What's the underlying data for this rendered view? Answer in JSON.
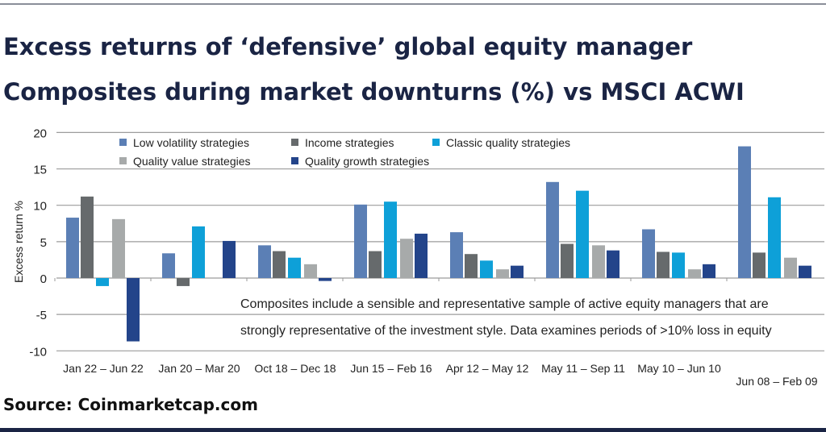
{
  "title_lines": [
    "Excess returns of ‘defensive’ global equity manager",
    "Composites during market downturns (%) vs MSCI ACWI"
  ],
  "source": "Source: Coinmarketcap.com",
  "chart_data": {
    "type": "bar",
    "title": "Excess returns of ‘defensive’ global equity manager Composites during market downturns (%) vs MSCI ACWI",
    "xlabel": "",
    "ylabel": "Excess return %",
    "ylim": [
      -10,
      20
    ],
    "yticks": [
      20,
      15,
      10,
      5,
      0,
      -5,
      -10
    ],
    "grid": true,
    "legend_position": "top",
    "categories": [
      "Jan 22 – Jun 22",
      "Jan 20 – Mar 20",
      "Oct 18 – Dec 18",
      "Jun 15 – Feb 16",
      "Apr 12 – May 12",
      "May 11 – Sep 11",
      "May 10 – Jun 10",
      "Jun 08 – Feb 09"
    ],
    "series": [
      {
        "name": "Low volatility strategies",
        "color": "#5b7fb5",
        "values": [
          8.3,
          3.4,
          4.5,
          10.1,
          6.3,
          13.2,
          6.7,
          18.1
        ]
      },
      {
        "name": "Income strategies",
        "color": "#666a6c",
        "values": [
          11.2,
          -1.1,
          3.7,
          3.7,
          3.3,
          4.7,
          3.6,
          3.5
        ]
      },
      {
        "name": "Classic quality strategies",
        "color": "#0ea0d8",
        "values": [
          -1.1,
          7.1,
          2.8,
          10.5,
          2.4,
          12.0,
          3.5,
          11.1
        ]
      },
      {
        "name": "Quality value strategies",
        "color": "#a7aaaa",
        "values": [
          8.1,
          0,
          1.9,
          5.4,
          1.2,
          4.5,
          1.2,
          2.8
        ]
      },
      {
        "name": "Quality growth strategies",
        "color": "#23448a",
        "values": [
          -8.7,
          5.1,
          -0.4,
          6.1,
          1.7,
          3.8,
          1.9,
          1.7
        ]
      }
    ],
    "annotation": [
      "Composites include a sensible and representative sample of active equity managers that are",
      "strongly representative of the investment style. Data examines periods of  >10% loss in equity"
    ]
  }
}
